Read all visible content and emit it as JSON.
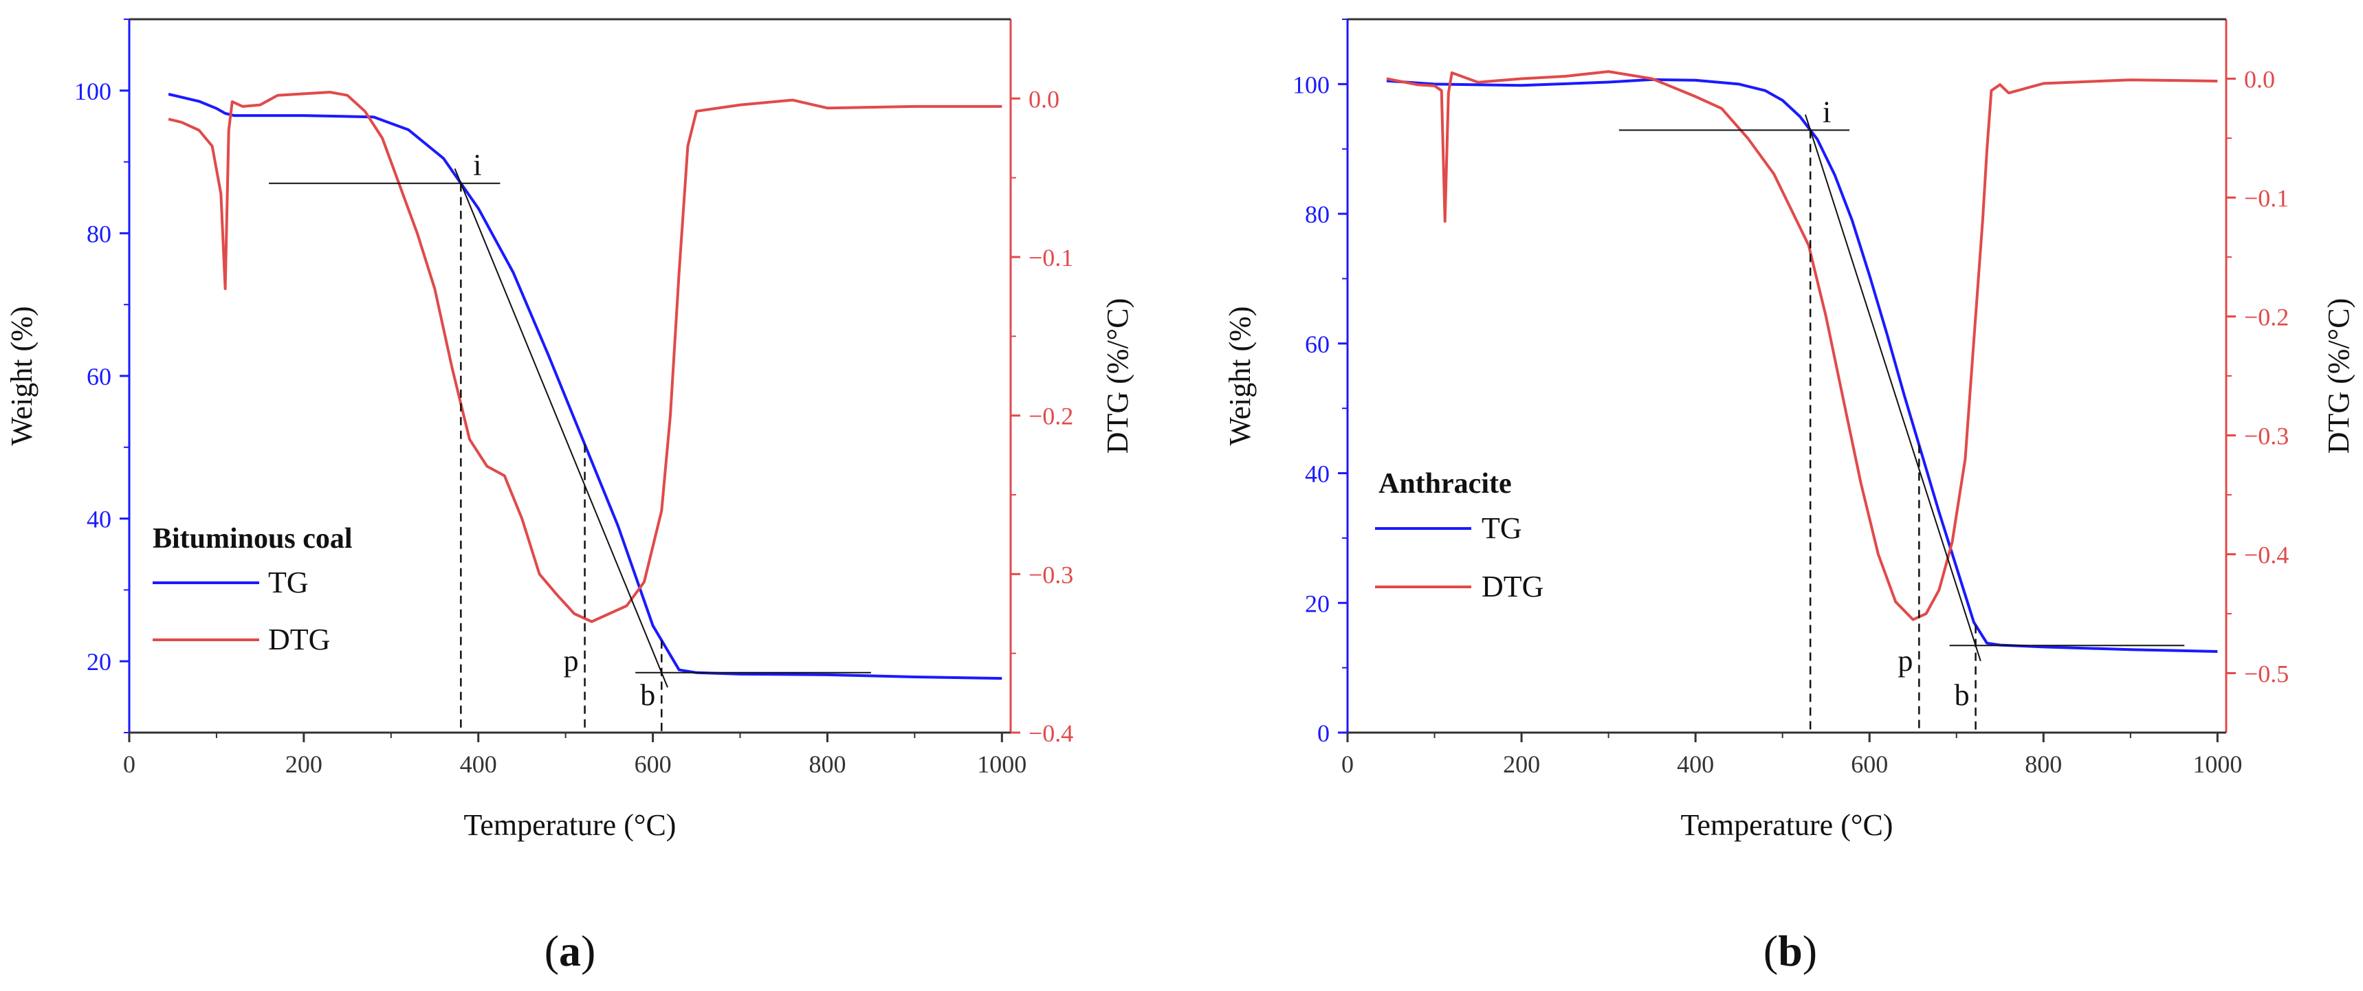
{
  "figure": {
    "colors": {
      "tg": "#1a1aff",
      "dtg": "#e14a4a",
      "axis": "#333333",
      "tangent": "#111111"
    },
    "panels": [
      {
        "caption_letter": "a",
        "caption_open": "(",
        "caption_close": ")",
        "chart_data": {
          "type": "line",
          "title": "Bituminous coal",
          "xlabel": "Temperature (°C)",
          "ylabel_left": "Weight (%)",
          "ylabel_right": "DTG (%/°C)",
          "xlim": [
            0,
            1010
          ],
          "ylim_left": [
            10,
            110
          ],
          "ylim_right": [
            -0.4,
            0.05
          ],
          "x_ticks": [
            0,
            200,
            400,
            600,
            800,
            1000
          ],
          "y_ticks_left": [
            20,
            40,
            60,
            80,
            100
          ],
          "y_ticks_right": [
            -0.4,
            -0.3,
            -0.2,
            -0.1,
            0.0
          ],
          "x_tick_labels": [
            "0",
            "200",
            "400",
            "600",
            "800",
            "1000"
          ],
          "y_tick_labels_left": [
            "20",
            "40",
            "60",
            "80",
            "100"
          ],
          "y_tick_labels_right": [
            "−0.4",
            "−0.3",
            "−0.2",
            "−0.1",
            "0.0"
          ],
          "legend": {
            "position": "bottom-left",
            "entries": [
              "TG",
              "DTG"
            ]
          },
          "series": [
            {
              "name": "TG",
              "axis": "left",
              "x": [
                45,
                80,
                100,
                110,
                120,
                200,
                280,
                320,
                360,
                400,
                440,
                480,
                520,
                560,
                600,
                630,
                650,
                700,
                800,
                900,
                1000
              ],
              "values": [
                99.5,
                98.5,
                97.5,
                96.8,
                96.5,
                96.5,
                96.3,
                94.5,
                90.5,
                83.5,
                74.5,
                63,
                51,
                39,
                25,
                18.8,
                18.4,
                18.2,
                18.1,
                17.8,
                17.6
              ]
            },
            {
              "name": "DTG",
              "axis": "right",
              "x": [
                45,
                60,
                80,
                95,
                105,
                110,
                114,
                118,
                130,
                150,
                170,
                200,
                230,
                250,
                270,
                290,
                310,
                330,
                350,
                370,
                390,
                410,
                430,
                450,
                470,
                490,
                510,
                530,
                550,
                570,
                590,
                610,
                620,
                630,
                640,
                650,
                700,
                760,
                800,
                900,
                1000
              ],
              "values": [
                -0.013,
                -0.015,
                -0.02,
                -0.03,
                -0.06,
                -0.12,
                -0.02,
                -0.002,
                -0.005,
                -0.004,
                0.002,
                0.003,
                0.004,
                0.002,
                -0.008,
                -0.025,
                -0.055,
                -0.085,
                -0.12,
                -0.17,
                -0.215,
                -0.232,
                -0.238,
                -0.265,
                -0.3,
                -0.313,
                -0.325,
                -0.33,
                -0.325,
                -0.32,
                -0.305,
                -0.26,
                -0.2,
                -0.11,
                -0.03,
                -0.008,
                -0.004,
                -0.001,
                -0.006,
                -0.005,
                -0.005
              ]
            }
          ],
          "markers": {
            "i": 380,
            "p": 522,
            "b": 610
          },
          "marker_labels": [
            "i",
            "p",
            "b"
          ]
        }
      },
      {
        "caption_letter": "b",
        "caption_open": "(",
        "caption_close": ")",
        "chart_data": {
          "type": "line",
          "title": "Anthracite",
          "xlabel": "Temperature (°C)",
          "ylabel_left": "Weight (%)",
          "ylabel_right": "DTG (%/°C)",
          "xlim": [
            0,
            1010
          ],
          "ylim_left": [
            0,
            110
          ],
          "ylim_right": [
            -0.55,
            0.05
          ],
          "x_ticks": [
            0,
            200,
            400,
            600,
            800,
            1000
          ],
          "y_ticks_left": [
            0,
            20,
            40,
            60,
            80,
            100
          ],
          "y_ticks_right": [
            -0.5,
            -0.4,
            -0.3,
            -0.2,
            -0.1,
            0.0
          ],
          "x_tick_labels": [
            "0",
            "200",
            "400",
            "600",
            "800",
            "1000"
          ],
          "y_tick_labels_left": [
            "0",
            "20",
            "40",
            "60",
            "80",
            "100"
          ],
          "y_tick_labels_right": [
            "−0.5",
            "−0.4",
            "−0.3",
            "−0.2",
            "−0.1",
            "0.0"
          ],
          "legend": {
            "position": "left",
            "entries": [
              "TG",
              "DTG"
            ]
          },
          "series": [
            {
              "name": "TG",
              "axis": "left",
              "x": [
                45,
                100,
                200,
                300,
                350,
                400,
                450,
                480,
                500,
                520,
                540,
                560,
                580,
                600,
                620,
                640,
                660,
                680,
                700,
                720,
                735,
                750,
                800,
                900,
                1000
              ],
              "values": [
                100.5,
                100.0,
                99.8,
                100.3,
                100.7,
                100.6,
                100.0,
                99.0,
                97.5,
                95.0,
                91.5,
                86.0,
                79.0,
                70.5,
                61.5,
                52.0,
                43.0,
                34.0,
                25.5,
                17.0,
                13.8,
                13.5,
                13.2,
                12.8,
                12.5
              ]
            },
            {
              "name": "DTG",
              "axis": "right",
              "x": [
                45,
                80,
                100,
                108,
                112,
                116,
                120,
                150,
                200,
                250,
                300,
                350,
                400,
                430,
                460,
                490,
                510,
                530,
                550,
                570,
                590,
                610,
                630,
                650,
                665,
                680,
                695,
                710,
                720,
                730,
                735,
                740,
                750,
                760,
                800,
                900,
                1000
              ],
              "values": [
                0.0,
                -0.005,
                -0.006,
                -0.01,
                -0.12,
                -0.012,
                0.005,
                -0.003,
                0.0,
                0.002,
                0.006,
                0.0,
                -0.015,
                -0.025,
                -0.05,
                -0.08,
                -0.11,
                -0.14,
                -0.2,
                -0.27,
                -0.34,
                -0.4,
                -0.44,
                -0.455,
                -0.45,
                -0.43,
                -0.39,
                -0.32,
                -0.22,
                -0.12,
                -0.06,
                -0.01,
                -0.005,
                -0.012,
                -0.004,
                -0.001,
                -0.002
              ]
            }
          ],
          "markers": {
            "i": 532,
            "p": 657,
            "b": 722
          },
          "marker_labels": [
            "i",
            "p",
            "b"
          ]
        }
      }
    ]
  }
}
